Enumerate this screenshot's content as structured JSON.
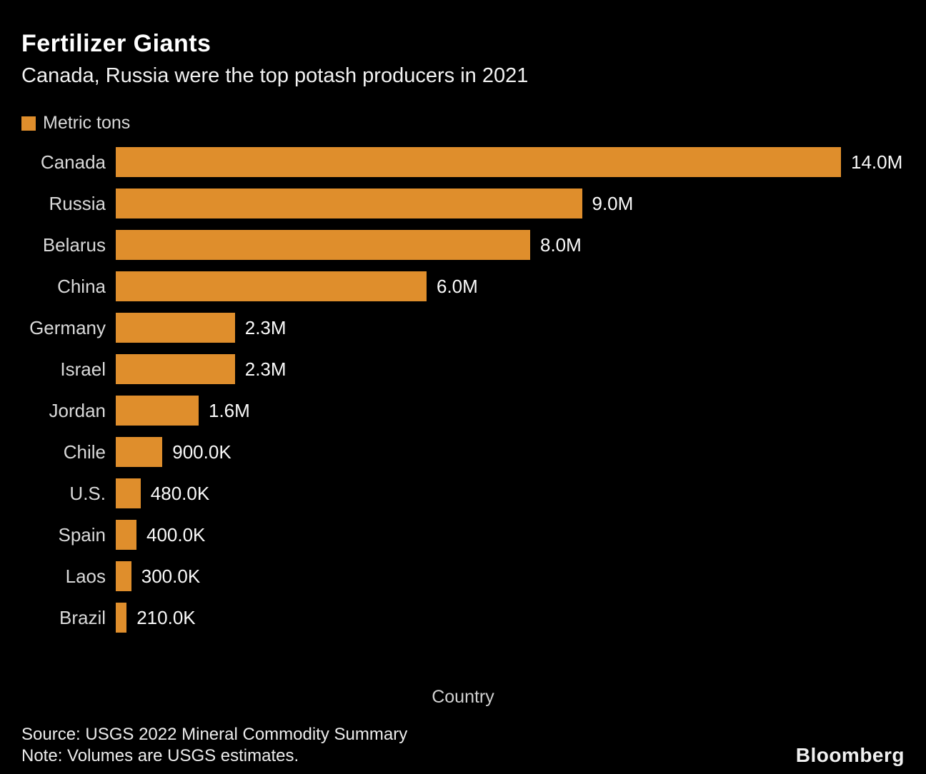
{
  "header": {
    "title": "Fertilizer Giants",
    "subtitle": "Canada, Russia were the top potash producers in 2021"
  },
  "legend": {
    "label": "Metric tons",
    "swatch_color": "#df8e2c"
  },
  "chart_data": {
    "type": "bar",
    "orientation": "horizontal",
    "title": "Fertilizer Giants",
    "subtitle": "Canada, Russia were the top potash producers in 2021",
    "series_name": "Metric tons",
    "categories": [
      "Canada",
      "Russia",
      "Belarus",
      "China",
      "Germany",
      "Israel",
      "Jordan",
      "Chile",
      "U.S.",
      "Spain",
      "Laos",
      "Brazil"
    ],
    "values": [
      14000000,
      9000000,
      8000000,
      6000000,
      2300000,
      2300000,
      1600000,
      900000,
      480000,
      400000,
      300000,
      210000
    ],
    "value_labels": [
      "14.0M",
      "9.0M",
      "8.0M",
      "6.0M",
      "2.3M",
      "2.3M",
      "1.6M",
      "900.0K",
      "480.0K",
      "400.0K",
      "300.0K",
      "210.0K"
    ],
    "category_axis_label": "Country",
    "value_axis_range": [
      0,
      14000000
    ],
    "bar_color": "#df8e2c",
    "background_color": "#000000",
    "grid": false,
    "legend_position": "top-left",
    "value_labels_position": "outside-end"
  },
  "footer": {
    "source": "Source: USGS 2022 Mineral Commodity Summary",
    "note": "Note: Volumes are USGS estimates.",
    "brand": "Bloomberg"
  }
}
